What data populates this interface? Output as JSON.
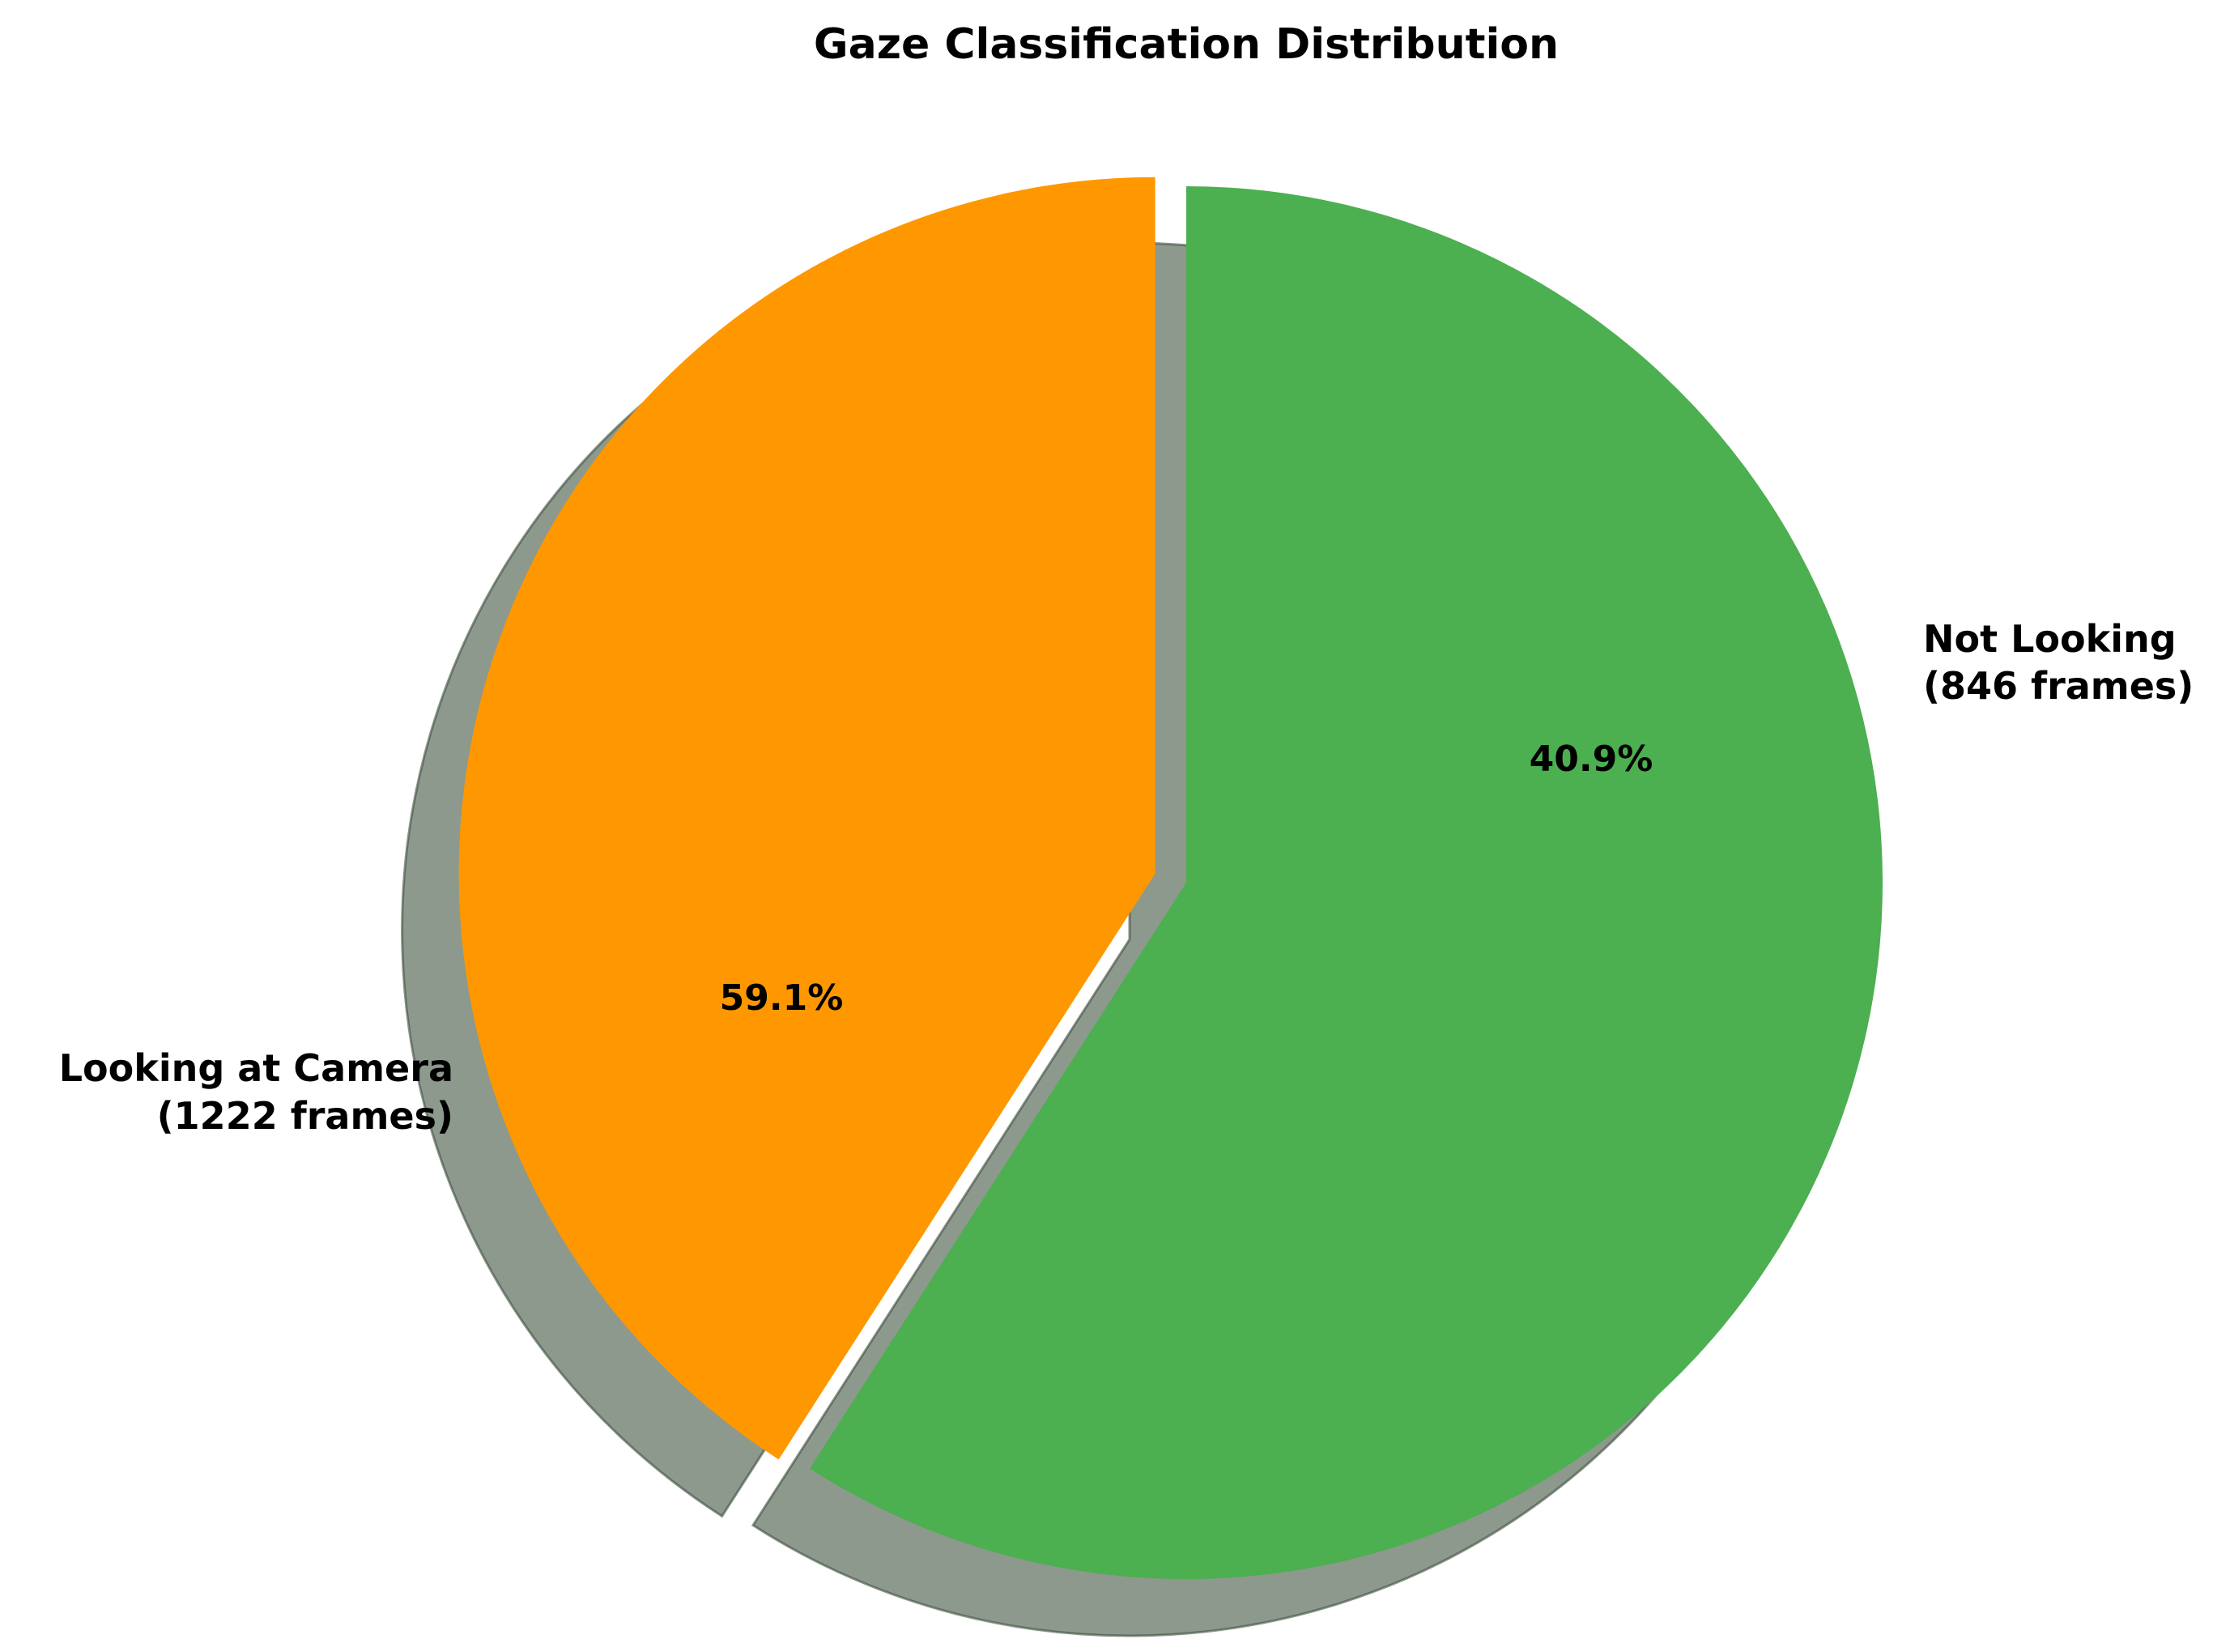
{
  "chart_data": {
    "type": "pie",
    "title": "Gaze Classification Distribution",
    "start_angle_deg": 90,
    "direction": "clockwise",
    "shadow": true,
    "slices": [
      {
        "name": "Looking at Camera",
        "count_label": "(1222 frames)",
        "value": 1222,
        "percent": 59.1,
        "percent_label": "59.1%",
        "color": "#4caf50",
        "exploded": false
      },
      {
        "name": "Not Looking",
        "count_label": "(846 frames)",
        "value": 846,
        "percent": 40.9,
        "percent_label": "40.9%",
        "color": "#ff9800",
        "exploded": true
      }
    ]
  }
}
